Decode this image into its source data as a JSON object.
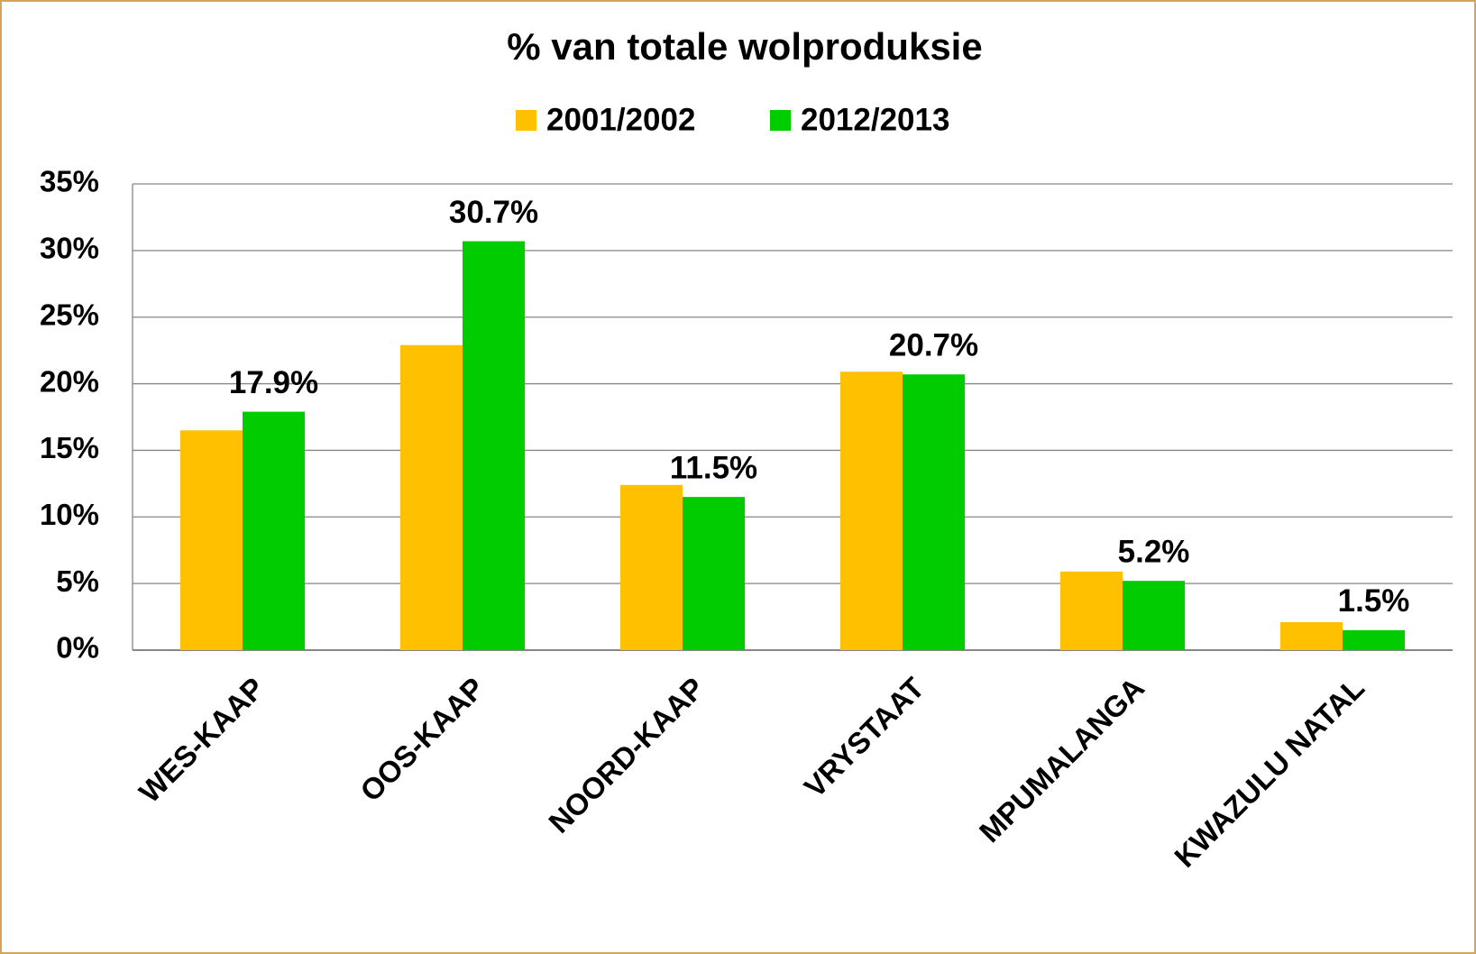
{
  "chart_data": {
    "type": "bar",
    "title": "% van totale wolproduksie",
    "categories": [
      "WES-KAAP",
      "OOS-KAAP",
      "NOORD-KAAP",
      "VRYSTAAT",
      "MPUMALANGA",
      "KWAZULU NATAL"
    ],
    "series": [
      {
        "name": "2001/2002",
        "color": "#FFC000",
        "values": [
          16.5,
          22.9,
          12.4,
          20.9,
          5.9,
          2.1
        ]
      },
      {
        "name": "2012/2013",
        "color": "#00CC00",
        "values": [
          17.9,
          30.7,
          11.5,
          20.7,
          5.2,
          1.5
        ],
        "value_labels": [
          "17.9%",
          "30.7%",
          "11.5%",
          "20.7%",
          "5.2%",
          "1.5%"
        ]
      }
    ],
    "ylim": [
      0,
      35
    ],
    "yticks": [
      {
        "value": 0,
        "label": "0%"
      },
      {
        "value": 5,
        "label": "5%"
      },
      {
        "value": 10,
        "label": "10%"
      },
      {
        "value": 15,
        "label": "15%"
      },
      {
        "value": 20,
        "label": "20%"
      },
      {
        "value": 25,
        "label": "25%"
      },
      {
        "value": 30,
        "label": "30%"
      },
      {
        "value": 35,
        "label": "35%"
      }
    ],
    "grid": true,
    "legend": "top"
  }
}
